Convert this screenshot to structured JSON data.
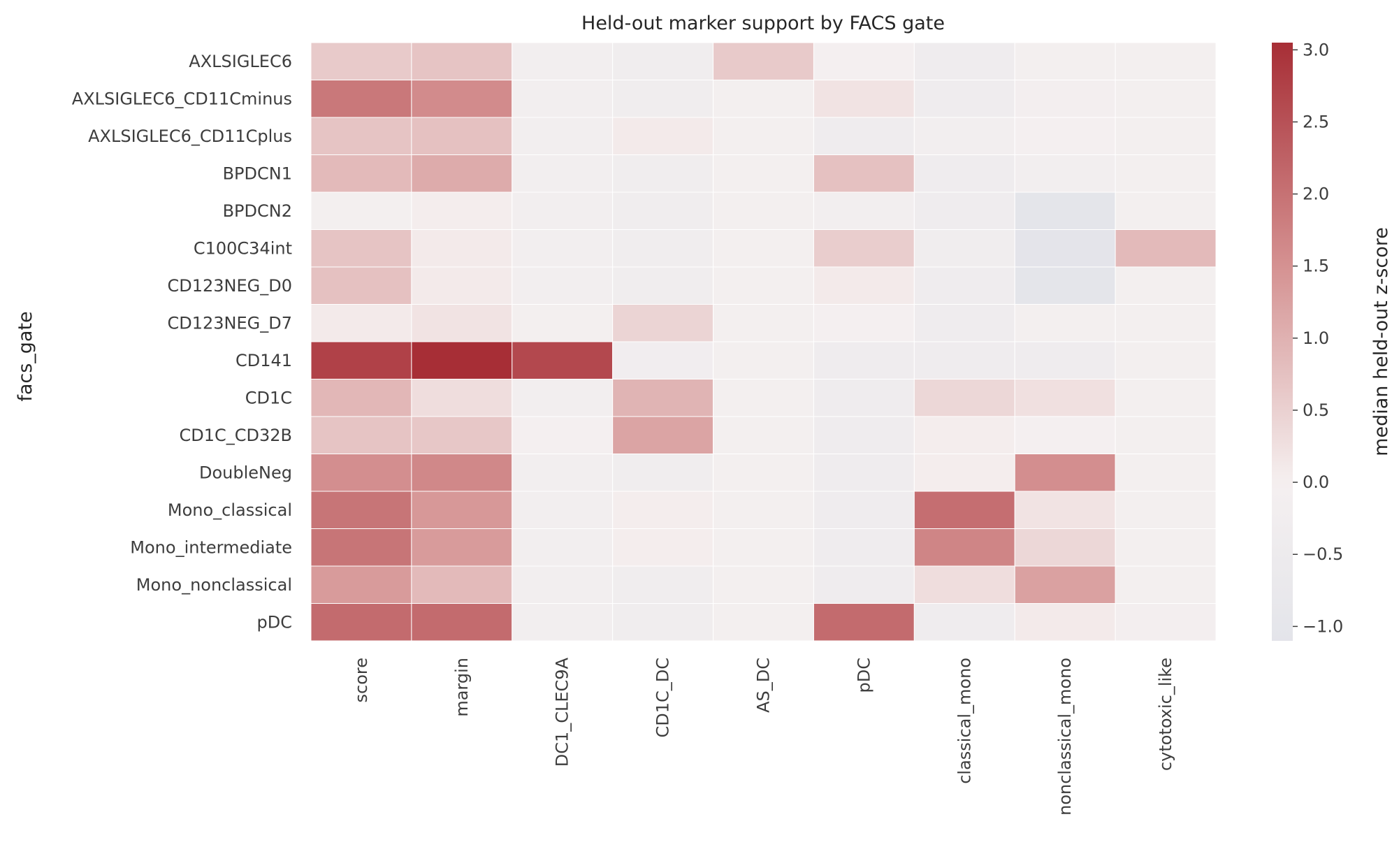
{
  "chart_data": {
    "type": "heatmap",
    "title": "Held-out marker support by FACS gate",
    "xlabel": "",
    "ylabel": "facs_gate",
    "colorbar_label": "median held-out z-score",
    "colormap": "vlag",
    "vmin": -1.1,
    "vmax": 3.05,
    "colorbar_ticks": [
      -1.0,
      -0.5,
      0.0,
      0.5,
      1.0,
      1.5,
      2.0,
      2.5,
      3.0
    ],
    "colorbar_tick_labels": [
      "−1.0",
      "−0.5",
      "0.0",
      "0.5",
      "1.0",
      "1.5",
      "2.0",
      "2.5",
      "3.0"
    ],
    "x_categories": [
      "score",
      "margin",
      "DC1_CLEC9A",
      "CD1C_DC",
      "AS_DC",
      "pDC",
      "classical_mono",
      "nonclassical_mono",
      "cytotoxic_like"
    ],
    "y_categories": [
      "AXLSIGLEC6",
      "AXLSIGLEC6_CD11Cminus",
      "AXLSIGLEC6_CD11Cplus",
      "BPDCN1",
      "BPDCN2",
      "C100C34int",
      "CD123NEG_D0",
      "CD123NEG_D7",
      "CD141",
      "CD1C",
      "CD1C_CD32B",
      "DoubleNeg",
      "Mono_classical",
      "Mono_intermediate",
      "Mono_nonclassical",
      "pDC"
    ],
    "values": [
      [
        0.6,
        0.7,
        -0.2,
        -0.3,
        0.6,
        -0.05,
        -0.4,
        -0.1,
        -0.1
      ],
      [
        1.9,
        1.6,
        -0.2,
        -0.3,
        -0.1,
        0.2,
        -0.4,
        -0.15,
        -0.1
      ],
      [
        0.7,
        0.75,
        -0.2,
        0.1,
        -0.1,
        -0.4,
        -0.2,
        -0.05,
        -0.1
      ],
      [
        0.85,
        1.1,
        -0.2,
        -0.3,
        -0.1,
        0.75,
        -0.35,
        -0.2,
        -0.1
      ],
      [
        -0.1,
        0.05,
        -0.2,
        -0.3,
        -0.1,
        -0.2,
        -0.35,
        -1.05,
        -0.1
      ],
      [
        0.7,
        0.1,
        -0.2,
        -0.3,
        -0.1,
        0.55,
        -0.3,
        -1.1,
        0.85
      ],
      [
        0.75,
        0.1,
        -0.2,
        -0.3,
        -0.1,
        0.1,
        -0.4,
        -1.05,
        -0.1
      ],
      [
        0.1,
        0.2,
        -0.1,
        0.45,
        -0.1,
        -0.05,
        -0.35,
        -0.1,
        -0.1
      ],
      [
        2.75,
        3.05,
        2.65,
        -0.25,
        -0.1,
        -0.4,
        -0.35,
        -0.35,
        -0.1
      ],
      [
        0.9,
        0.3,
        -0.2,
        0.95,
        -0.1,
        -0.4,
        0.4,
        0.25,
        -0.1
      ],
      [
        0.7,
        0.65,
        -0.05,
        1.2,
        -0.1,
        -0.4,
        0.05,
        -0.05,
        -0.1
      ],
      [
        1.55,
        1.65,
        -0.2,
        -0.3,
        -0.1,
        -0.4,
        0.05,
        1.55,
        -0.1
      ],
      [
        1.95,
        1.4,
        -0.2,
        0.05,
        -0.1,
        -0.4,
        2.05,
        0.2,
        -0.1
      ],
      [
        1.95,
        1.35,
        -0.2,
        0.05,
        -0.1,
        -0.4,
        1.7,
        0.4,
        -0.1
      ],
      [
        1.35,
        0.85,
        -0.2,
        -0.3,
        -0.1,
        -0.4,
        0.3,
        1.25,
        -0.1
      ],
      [
        2.1,
        2.1,
        -0.2,
        -0.3,
        -0.1,
        2.1,
        -0.35,
        0.1,
        -0.15
      ]
    ],
    "grid": false,
    "legend": "colorbar-right"
  }
}
